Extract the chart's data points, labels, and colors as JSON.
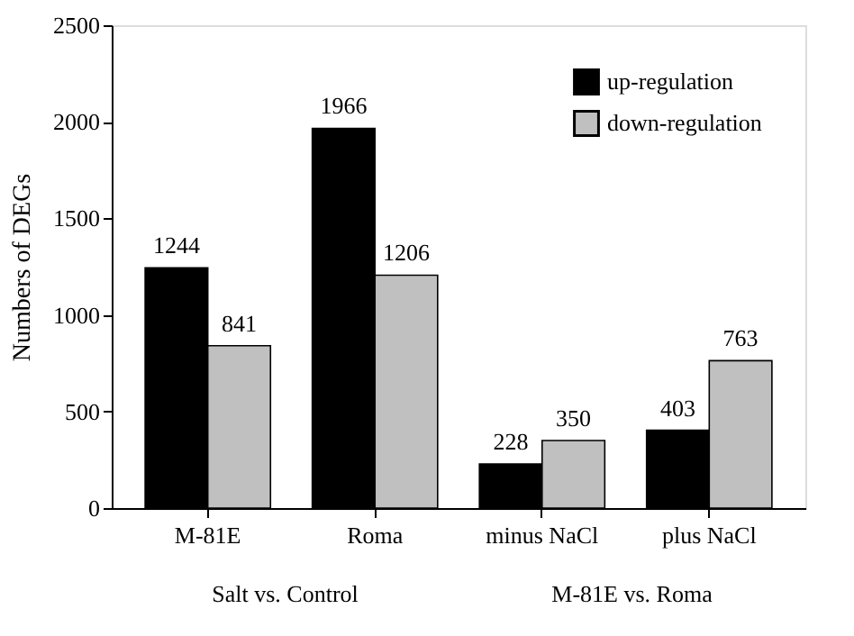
{
  "chart_data": {
    "type": "bar",
    "ylabel": "Numbers of DEGs",
    "categories": [
      "M-81E",
      "Roma",
      "minus NaCl",
      "plus NaCl"
    ],
    "series": [
      {
        "name": "up-regulation",
        "color": "#000000",
        "values": [
          1244,
          1966,
          228,
          403
        ]
      },
      {
        "name": "down-regulation",
        "color": "#c0c0c0",
        "values": [
          841,
          1206,
          350,
          763
        ]
      }
    ],
    "ylim": [
      0,
      2500
    ],
    "yticks": [
      0,
      500,
      1000,
      1500,
      2000,
      2500
    ],
    "grid": false,
    "legend": "top right",
    "data_labels": true,
    "annotations": [
      "Salt vs. Control",
      "M-81E vs. Roma"
    ]
  }
}
